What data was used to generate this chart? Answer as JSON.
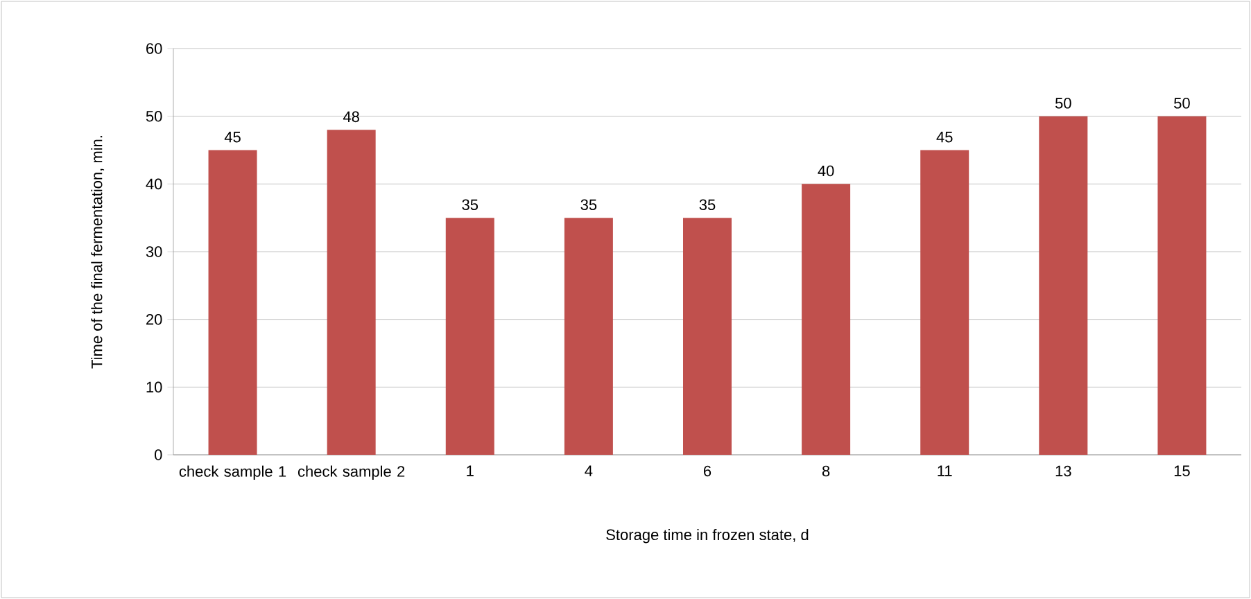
{
  "chart_data": {
    "type": "bar",
    "xlabel": "Storage time in frozen state, d",
    "ylabel": "Time of the final fermentation, min.",
    "categories": [
      "check sample 1",
      "check sample 2",
      "1",
      "4",
      "6",
      "8",
      "11",
      "13",
      "15"
    ],
    "values": [
      45,
      48,
      35,
      35,
      35,
      40,
      45,
      50,
      50
    ],
    "color": "#c0504d",
    "ylim": [
      0,
      60
    ],
    "yticks": [
      0,
      10,
      20,
      30,
      40,
      50,
      60
    ],
    "grid": "y",
    "data_labels": true
  }
}
